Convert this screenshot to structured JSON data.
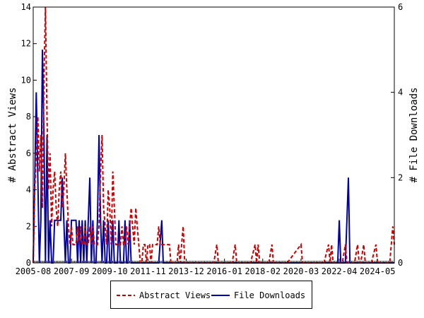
{
  "chart_data": {
    "type": "line",
    "x_tick_labels": [
      "2005-08",
      "2007-09",
      "2009-10",
      "2011-11",
      "2013-12",
      "2016-01",
      "2018-02",
      "2020-03",
      "2022-04",
      "2024-05"
    ],
    "x_range": [
      "2005-08",
      "2025-04"
    ],
    "y_left": {
      "label": "# Abstract Views",
      "ylim": [
        0,
        14
      ],
      "ticks": [
        "0",
        "2",
        "4",
        "6",
        "8",
        "10",
        "12",
        "14"
      ]
    },
    "y_right": {
      "label": "# File Downloads",
      "ylim": [
        0,
        6
      ],
      "ticks": [
        "0",
        "2",
        "4",
        "6"
      ]
    },
    "legend": {
      "placement": "bottom-center"
    },
    "series": [
      {
        "name": "Abstract Views",
        "axis": "left",
        "color": "#cc0000",
        "style": "dashed",
        "points": [
          [
            "2005-08",
            0
          ],
          [
            "2005-09",
            4
          ],
          [
            "2005-10",
            6
          ],
          [
            "2005-11",
            8
          ],
          [
            "2005-12",
            5
          ],
          [
            "2006-01",
            7
          ],
          [
            "2006-02",
            3
          ],
          [
            "2006-03",
            10
          ],
          [
            "2006-04",
            14
          ],
          [
            "2006-05",
            8
          ],
          [
            "2006-06",
            4
          ],
          [
            "2006-07",
            6
          ],
          [
            "2006-08",
            2
          ],
          [
            "2006-09",
            4
          ],
          [
            "2006-10",
            5
          ],
          [
            "2006-11",
            3
          ],
          [
            "2006-12",
            2
          ],
          [
            "2007-01",
            4
          ],
          [
            "2007-02",
            5
          ],
          [
            "2007-03",
            3
          ],
          [
            "2007-04",
            4
          ],
          [
            "2007-05",
            6
          ],
          [
            "2007-06",
            4
          ],
          [
            "2007-07",
            2
          ],
          [
            "2007-08",
            1
          ],
          [
            "2007-09",
            2
          ],
          [
            "2007-10",
            1
          ],
          [
            "2007-11",
            1
          ],
          [
            "2007-12",
            1
          ],
          [
            "2008-01",
            2
          ],
          [
            "2008-02",
            1
          ],
          [
            "2008-03",
            2
          ],
          [
            "2008-04",
            1
          ],
          [
            "2008-05",
            1
          ],
          [
            "2008-06",
            2
          ],
          [
            "2008-07",
            1
          ],
          [
            "2008-08",
            1
          ],
          [
            "2008-09",
            2
          ],
          [
            "2008-10",
            1
          ],
          [
            "2008-11",
            2
          ],
          [
            "2008-12",
            1
          ],
          [
            "2009-01",
            1
          ],
          [
            "2009-02",
            1
          ],
          [
            "2009-03",
            2
          ],
          [
            "2009-04",
            5
          ],
          [
            "2009-05",
            7
          ],
          [
            "2009-06",
            3
          ],
          [
            "2009-07",
            2
          ],
          [
            "2009-08",
            1
          ],
          [
            "2009-09",
            4
          ],
          [
            "2009-10",
            3
          ],
          [
            "2009-11",
            1
          ],
          [
            "2009-12",
            5
          ],
          [
            "2010-01",
            3
          ],
          [
            "2010-02",
            1
          ],
          [
            "2010-03",
            1
          ],
          [
            "2010-04",
            1
          ],
          [
            "2010-05",
            1
          ],
          [
            "2010-06",
            2
          ],
          [
            "2010-07",
            1
          ],
          [
            "2010-08",
            1
          ],
          [
            "2010-09",
            2
          ],
          [
            "2010-10",
            1
          ],
          [
            "2010-11",
            2
          ],
          [
            "2010-12",
            3
          ],
          [
            "2011-01",
            2
          ],
          [
            "2011-02",
            1
          ],
          [
            "2011-03",
            3
          ],
          [
            "2011-04",
            2
          ],
          [
            "2011-05",
            1
          ],
          [
            "2011-06",
            0
          ],
          [
            "2011-07",
            0
          ],
          [
            "2011-08",
            1
          ],
          [
            "2011-09",
            1
          ],
          [
            "2011-10",
            0
          ],
          [
            "2011-11",
            1
          ],
          [
            "2011-12",
            1
          ],
          [
            "2012-01",
            0
          ],
          [
            "2012-02",
            1
          ],
          [
            "2012-03",
            1
          ],
          [
            "2012-04",
            1
          ],
          [
            "2012-05",
            1
          ],
          [
            "2012-06",
            2
          ],
          [
            "2012-07",
            1
          ],
          [
            "2012-08",
            1
          ],
          [
            "2012-09",
            1
          ],
          [
            "2012-10",
            1
          ],
          [
            "2012-11",
            1
          ],
          [
            "2012-12",
            1
          ],
          [
            "2013-01",
            1
          ],
          [
            "2013-02",
            0
          ],
          [
            "2013-03",
            0
          ],
          [
            "2013-04",
            0
          ],
          [
            "2013-05",
            0
          ],
          [
            "2013-06",
            0
          ],
          [
            "2013-07",
            1
          ],
          [
            "2013-08",
            0
          ],
          [
            "2013-09",
            1
          ],
          [
            "2013-10",
            2
          ],
          [
            "2013-11",
            0
          ],
          [
            "2013-12",
            0
          ],
          [
            "2014-06",
            0
          ],
          [
            "2015-06",
            0
          ],
          [
            "2015-08",
            1
          ],
          [
            "2015-09",
            0
          ],
          [
            "2016-06",
            0
          ],
          [
            "2016-08",
            1
          ],
          [
            "2016-09",
            0
          ],
          [
            "2017-06",
            0
          ],
          [
            "2017-09",
            1
          ],
          [
            "2017-10",
            0
          ],
          [
            "2017-11",
            1
          ],
          [
            "2017-12",
            0
          ],
          [
            "2018-06",
            0
          ],
          [
            "2018-08",
            1
          ],
          [
            "2018-09",
            0
          ],
          [
            "2019-06",
            0
          ],
          [
            "2020-03",
            1
          ],
          [
            "2020-04",
            0
          ],
          [
            "2021-06",
            0
          ],
          [
            "2021-09",
            1
          ],
          [
            "2021-10",
            0
          ],
          [
            "2021-11",
            1
          ],
          [
            "2021-12",
            0
          ],
          [
            "2022-01",
            0
          ],
          [
            "2022-02",
            0
          ],
          [
            "2022-03",
            0
          ],
          [
            "2022-04",
            0
          ],
          [
            "2022-06",
            0
          ],
          [
            "2022-08",
            1
          ],
          [
            "2022-09",
            0
          ],
          [
            "2023-02",
            0
          ],
          [
            "2023-04",
            1
          ],
          [
            "2023-05",
            0
          ],
          [
            "2023-06",
            0
          ],
          [
            "2023-08",
            1
          ],
          [
            "2023-09",
            0
          ],
          [
            "2024-01",
            0
          ],
          [
            "2024-04",
            1
          ],
          [
            "2024-05",
            0
          ],
          [
            "2025-01",
            0
          ],
          [
            "2025-02",
            1
          ],
          [
            "2025-03",
            2
          ],
          [
            "2025-04",
            1
          ]
        ]
      },
      {
        "name": "File Downloads",
        "axis": "right",
        "color": "#0000aa",
        "style": "solid",
        "points": [
          [
            "2005-08",
            0
          ],
          [
            "2005-09",
            2
          ],
          [
            "2005-10",
            4
          ],
          [
            "2005-11",
            2
          ],
          [
            "2005-12",
            0
          ],
          [
            "2006-01",
            1
          ],
          [
            "2006-02",
            5
          ],
          [
            "2006-03",
            3
          ],
          [
            "2006-04",
            0
          ],
          [
            "2006-05",
            3
          ],
          [
            "2006-06",
            0
          ],
          [
            "2006-07",
            1
          ],
          [
            "2006-08",
            0
          ],
          [
            "2006-09",
            0
          ],
          [
            "2006-10",
            1
          ],
          [
            "2006-11",
            1
          ],
          [
            "2006-12",
            1
          ],
          [
            "2007-01",
            1
          ],
          [
            "2007-02",
            1
          ],
          [
            "2007-03",
            2
          ],
          [
            "2007-04",
            1
          ],
          [
            "2007-05",
            0
          ],
          [
            "2007-06",
            1
          ],
          [
            "2007-07",
            0
          ],
          [
            "2007-08",
            0
          ],
          [
            "2007-09",
            1
          ],
          [
            "2007-10",
            1
          ],
          [
            "2007-11",
            1
          ],
          [
            "2007-12",
            1
          ],
          [
            "2008-01",
            0
          ],
          [
            "2008-02",
            1
          ],
          [
            "2008-03",
            0
          ],
          [
            "2008-04",
            1
          ],
          [
            "2008-05",
            0
          ],
          [
            "2008-06",
            1
          ],
          [
            "2008-07",
            0
          ],
          [
            "2008-08",
            1
          ],
          [
            "2008-09",
            2
          ],
          [
            "2008-10",
            0
          ],
          [
            "2008-11",
            1
          ],
          [
            "2008-12",
            0
          ],
          [
            "2009-01",
            0
          ],
          [
            "2009-02",
            1
          ],
          [
            "2009-03",
            3
          ],
          [
            "2009-04",
            1
          ],
          [
            "2009-05",
            0
          ],
          [
            "2009-06",
            1
          ],
          [
            "2009-07",
            0
          ],
          [
            "2009-08",
            0
          ],
          [
            "2009-09",
            1
          ],
          [
            "2009-10",
            0
          ],
          [
            "2009-11",
            0
          ],
          [
            "2009-12",
            1
          ],
          [
            "2010-01",
            0
          ],
          [
            "2010-02",
            0
          ],
          [
            "2010-03",
            0
          ],
          [
            "2010-04",
            1
          ],
          [
            "2010-05",
            0
          ],
          [
            "2010-06",
            0
          ],
          [
            "2010-07",
            0
          ],
          [
            "2010-08",
            1
          ],
          [
            "2010-09",
            0
          ],
          [
            "2010-10",
            0
          ],
          [
            "2010-11",
            1
          ],
          [
            "2010-12",
            0
          ],
          [
            "2011-01",
            0
          ],
          [
            "2011-02",
            0
          ],
          [
            "2011-03",
            0
          ],
          [
            "2011-06",
            0
          ],
          [
            "2012-06",
            0
          ],
          [
            "2012-08",
            1
          ],
          [
            "2012-09",
            0
          ],
          [
            "2013-01",
            0
          ],
          [
            "2014-01",
            0
          ],
          [
            "2016-01",
            0
          ],
          [
            "2018-01",
            0
          ],
          [
            "2020-01",
            0
          ],
          [
            "2022-01",
            0
          ],
          [
            "2022-02",
            0
          ],
          [
            "2022-03",
            0
          ],
          [
            "2022-04",
            1
          ],
          [
            "2022-05",
            0
          ],
          [
            "2022-06",
            0
          ],
          [
            "2022-08",
            0
          ],
          [
            "2022-09",
            1
          ],
          [
            "2022-10",
            2
          ],
          [
            "2022-11",
            0
          ],
          [
            "2022-12",
            0
          ],
          [
            "2023-06",
            0
          ],
          [
            "2024-06",
            0
          ],
          [
            "2025-04",
            0
          ]
        ]
      }
    ]
  }
}
